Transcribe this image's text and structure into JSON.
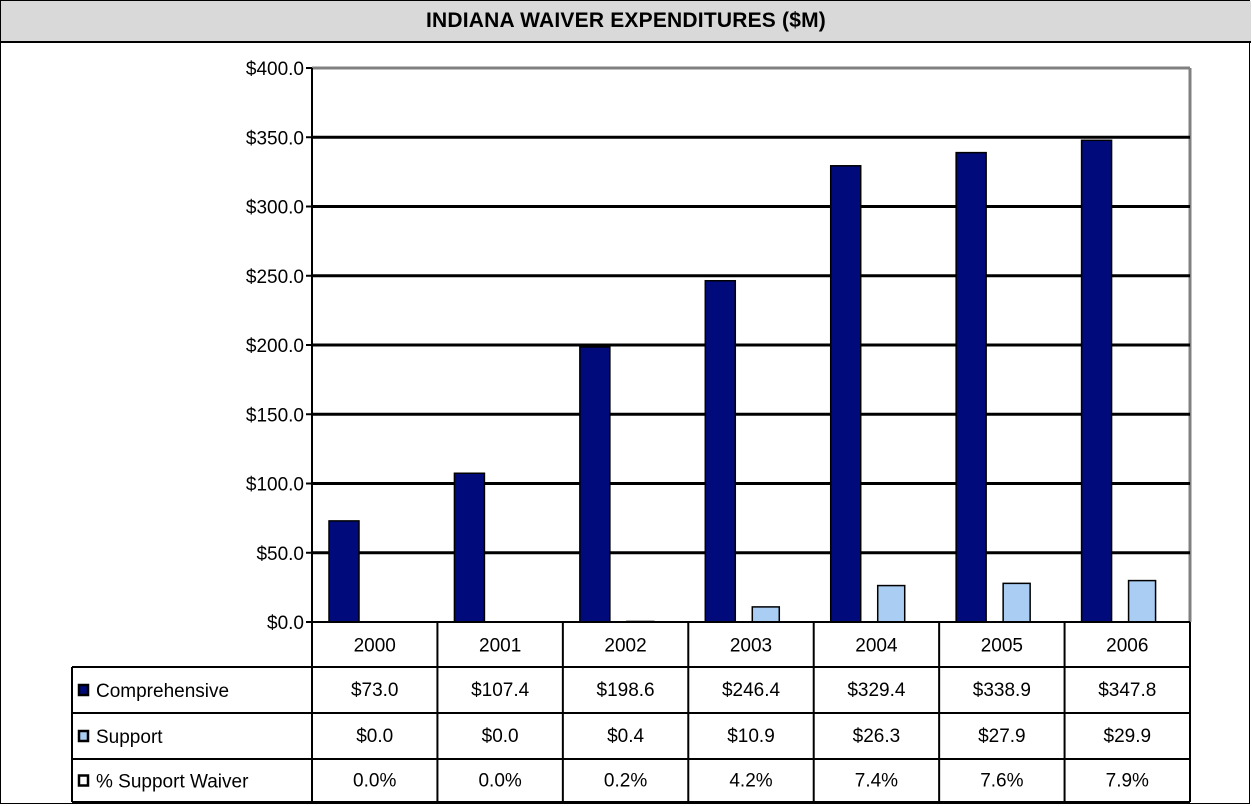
{
  "chart_data": {
    "type": "bar",
    "title": "INDIANA WAIVER EXPENDITURES ($M)",
    "categories": [
      "2000",
      "2001",
      "2002",
      "2003",
      "2004",
      "2005",
      "2006"
    ],
    "ylim": [
      0,
      400
    ],
    "yticks": [
      "$0.0",
      "$50.0",
      "$100.0",
      "$150.0",
      "$200.0",
      "$250.0",
      "$300.0",
      "$350.0",
      "$400.0"
    ],
    "grid": true,
    "series": [
      {
        "name": "Comprehensive",
        "values": [
          73.0,
          107.4,
          198.6,
          246.4,
          329.4,
          338.9,
          347.8
        ],
        "labels": [
          "$73.0",
          "$107.4",
          "$198.6",
          "$246.4",
          "$329.4",
          "$338.9",
          "$347.8"
        ],
        "color": "#000a7a"
      },
      {
        "name": "Support",
        "values": [
          0.0,
          0.0,
          0.4,
          10.9,
          26.3,
          27.9,
          29.9
        ],
        "labels": [
          "$0.0",
          "$0.0",
          "$0.4",
          "$10.9",
          "$26.3",
          "$27.9",
          "$29.9"
        ],
        "color": "#a9cdf3"
      }
    ],
    "table_rows": [
      {
        "name": "% Support Waiver",
        "labels": [
          "0.0%",
          "0.0%",
          "0.2%",
          "4.2%",
          "7.4%",
          "7.6%",
          "7.9%"
        ]
      }
    ]
  }
}
